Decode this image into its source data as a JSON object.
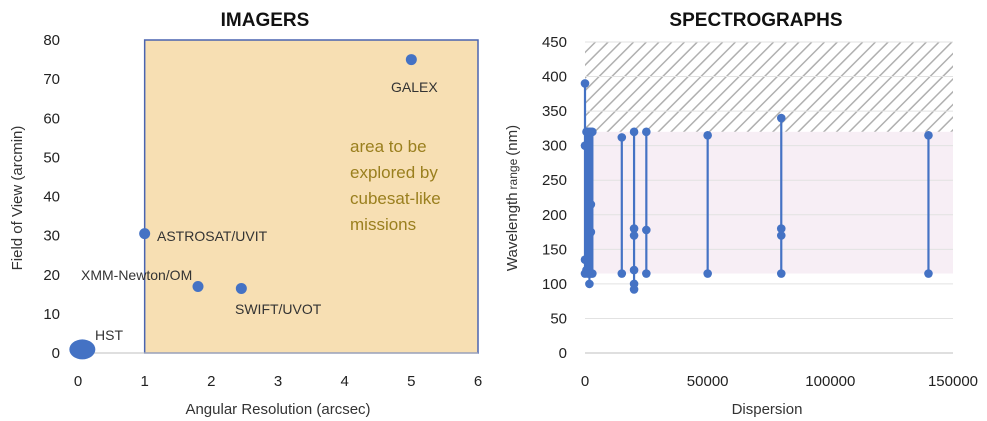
{
  "colors": {
    "marker": "#4472c4",
    "imager_region_fill": "#f7dfb3",
    "imager_region_stroke": "#4a64b0",
    "spectro_band_fill": "#f7eef5",
    "hatch": "#b0b0b0",
    "grid": "#e2e2e2",
    "region_text": "#9a7f1e"
  },
  "chart_data": [
    {
      "type": "scatter",
      "title": "IMAGERS",
      "xlabel": "Angular Resolution (arcsec)",
      "ylabel": "Field of View (arcmin)",
      "xlim": [
        0,
        6
      ],
      "ylim": [
        0,
        80
      ],
      "xticks": [
        "0",
        "1",
        "2",
        "3",
        "4",
        "5",
        "6"
      ],
      "yticks": [
        "0",
        "10",
        "20",
        "30",
        "40",
        "50",
        "60",
        "70",
        "80"
      ],
      "grid": "none",
      "points": [
        {
          "label": "HST",
          "x": 0.05,
          "y": 0.4,
          "large": true
        },
        {
          "label": "ASTROSAT/UVIT",
          "x": 1.0,
          "y": 30.5
        },
        {
          "label": "XMM-Newton/OM",
          "x": 1.8,
          "y": 17
        },
        {
          "label": "SWIFT/UVOT",
          "x": 2.45,
          "y": 16.5
        },
        {
          "label": "GALEX",
          "x": 5.0,
          "y": 75
        }
      ],
      "region": {
        "x": [
          1,
          6
        ],
        "y": [
          0,
          80
        ],
        "text": [
          "area to be",
          "explored by",
          "cubesat-like",
          "missions"
        ]
      }
    },
    {
      "type": "line",
      "title": "SPECTROGRAPHS",
      "xlabel": "Dispersion",
      "ylabel_main": "Wavelength",
      "ylabel_small": "range",
      "ylabel_unit": "(nm)",
      "xlim": [
        0,
        150000
      ],
      "ylim": [
        0,
        450
      ],
      "xticks": [
        "0",
        "50000",
        "100000",
        "150000"
      ],
      "yticks": [
        "0",
        "50",
        "100",
        "150",
        "200",
        "250",
        "300",
        "350",
        "400",
        "450"
      ],
      "grid": "horizontal",
      "shaded_band": [
        115,
        320
      ],
      "hatched_band": [
        320,
        450
      ],
      "series": [
        {
          "x": 0,
          "values": [
            390,
            300,
            135,
            115
          ]
        },
        {
          "x": 600,
          "values": [
            320,
            120
          ]
        },
        {
          "x": 1200,
          "values": [
            320,
            115
          ]
        },
        {
          "x": 1800,
          "values": [
            320,
            100
          ]
        },
        {
          "x": 2400,
          "values": [
            320,
            215,
            175,
            115
          ]
        },
        {
          "x": 3000,
          "values": [
            320,
            115
          ]
        },
        {
          "x": 15000,
          "values": [
            312,
            115
          ]
        },
        {
          "x": 20000,
          "values": [
            320,
            180,
            170,
            120,
            100,
            92
          ]
        },
        {
          "x": 25000,
          "values": [
            320,
            178,
            115
          ]
        },
        {
          "x": 50000,
          "values": [
            315,
            115
          ]
        },
        {
          "x": 80000,
          "values": [
            340,
            180,
            170,
            115
          ]
        },
        {
          "x": 140000,
          "values": [
            315,
            115
          ]
        }
      ]
    }
  ]
}
